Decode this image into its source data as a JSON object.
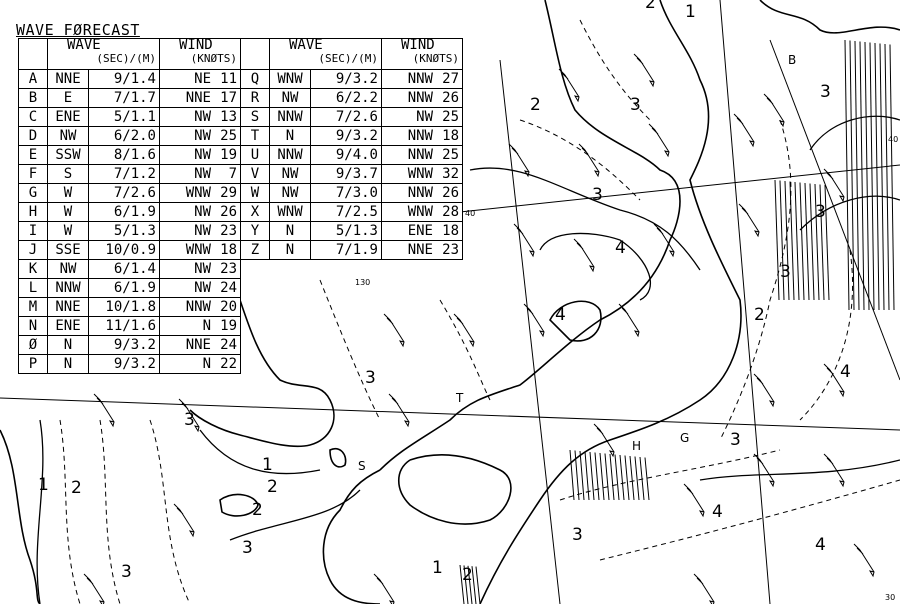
{
  "title": "WAVE FØRECAST",
  "headers": {
    "wave": "WAVE",
    "wave_units": "(SEC)/(M)",
    "wind": "WIND",
    "wind_units": "(KNØTS)"
  },
  "table_left": [
    {
      "pt": "A",
      "wave_dir": "NNE",
      "wave": "9/1.4",
      "wind_dir": "NE",
      "wind": "11"
    },
    {
      "pt": "B",
      "wave_dir": "E",
      "wave": "7/1.7",
      "wind_dir": "NNE",
      "wind": "17"
    },
    {
      "pt": "C",
      "wave_dir": "ENE",
      "wave": "5/1.1",
      "wind_dir": "NW",
      "wind": "13"
    },
    {
      "pt": "D",
      "wave_dir": "NW",
      "wave": "6/2.0",
      "wind_dir": "NW",
      "wind": "25"
    },
    {
      "pt": "E",
      "wave_dir": "SSW",
      "wave": "8/1.6",
      "wind_dir": "NW",
      "wind": "19"
    },
    {
      "pt": "F",
      "wave_dir": "S",
      "wave": "7/1.2",
      "wind_dir": "NW",
      "wind": "7"
    },
    {
      "pt": "G",
      "wave_dir": "W",
      "wave": "7/2.6",
      "wind_dir": "WNW",
      "wind": "29"
    },
    {
      "pt": "H",
      "wave_dir": "W",
      "wave": "6/1.9",
      "wind_dir": "NW",
      "wind": "26"
    },
    {
      "pt": "I",
      "wave_dir": "W",
      "wave": "5/1.3",
      "wind_dir": "NW",
      "wind": "23"
    },
    {
      "pt": "J",
      "wave_dir": "SSE",
      "wave": "10/0.9",
      "wind_dir": "WNW",
      "wind": "18"
    },
    {
      "pt": "K",
      "wave_dir": "NW",
      "wave": "6/1.4",
      "wind_dir": "NW",
      "wind": "23"
    },
    {
      "pt": "L",
      "wave_dir": "NNW",
      "wave": "6/1.9",
      "wind_dir": "NW",
      "wind": "24"
    },
    {
      "pt": "M",
      "wave_dir": "NNE",
      "wave": "10/1.8",
      "wind_dir": "NNW",
      "wind": "20"
    },
    {
      "pt": "N",
      "wave_dir": "ENE",
      "wave": "11/1.6",
      "wind_dir": "N",
      "wind": "19"
    },
    {
      "pt": "Ø",
      "wave_dir": "N",
      "wave": "9/3.2",
      "wind_dir": "NNE",
      "wind": "24"
    },
    {
      "pt": "P",
      "wave_dir": "N",
      "wave": "9/3.2",
      "wind_dir": "N",
      "wind": "22"
    }
  ],
  "table_right": [
    {
      "pt": "Q",
      "wave_dir": "WNW",
      "wave": "9/3.2",
      "wind_dir": "NNW",
      "wind": "27"
    },
    {
      "pt": "R",
      "wave_dir": "NW",
      "wave": "6/2.2",
      "wind_dir": "NNW",
      "wind": "26"
    },
    {
      "pt": "S",
      "wave_dir": "NNW",
      "wave": "7/2.6",
      "wind_dir": "NW",
      "wind": "25"
    },
    {
      "pt": "T",
      "wave_dir": "N",
      "wave": "9/3.2",
      "wind_dir": "NNW",
      "wind": "18"
    },
    {
      "pt": "U",
      "wave_dir": "NNW",
      "wave": "9/4.0",
      "wind_dir": "NNW",
      "wind": "25"
    },
    {
      "pt": "V",
      "wave_dir": "NW",
      "wave": "9/3.7",
      "wind_dir": "WNW",
      "wind": "32"
    },
    {
      "pt": "W",
      "wave_dir": "NW",
      "wave": "7/3.0",
      "wind_dir": "NNW",
      "wind": "26"
    },
    {
      "pt": "X",
      "wave_dir": "WNW",
      "wave": "7/2.5",
      "wind_dir": "WNW",
      "wind": "28"
    },
    {
      "pt": "Y",
      "wave_dir": "N",
      "wave": "5/1.3",
      "wind_dir": "ENE",
      "wind": "18"
    },
    {
      "pt": "Z",
      "wave_dir": "N",
      "wave": "7/1.9",
      "wind_dir": "NNE",
      "wind": "23"
    }
  ],
  "map": {
    "contour_labels": [
      "2",
      "3",
      "3",
      "4",
      "4",
      "3",
      "3",
      "1",
      "2",
      "2",
      "3",
      "1",
      "2",
      "3",
      "2",
      "3",
      "3",
      "3",
      "4",
      "4",
      "4",
      "3",
      "1",
      "2",
      "3",
      "2",
      "1"
    ],
    "grid_labels": [
      "40",
      "130",
      "30",
      "40"
    ],
    "station_labels": [
      "B",
      "T",
      "S",
      "G",
      "H"
    ]
  }
}
